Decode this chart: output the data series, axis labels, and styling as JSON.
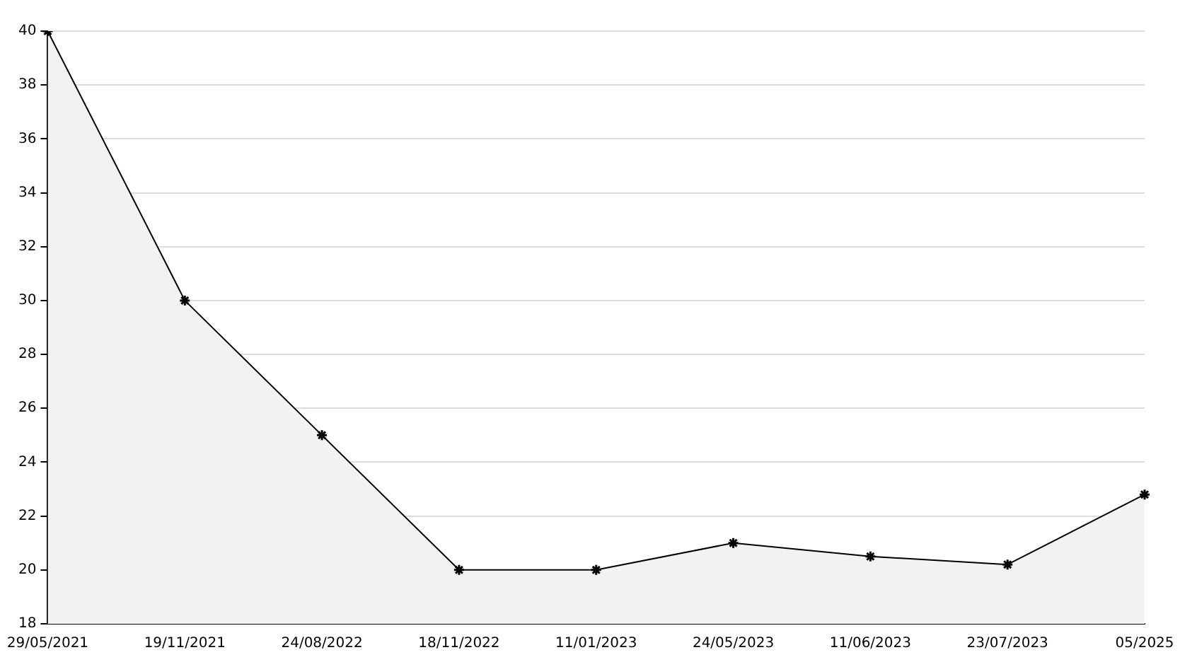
{
  "chart_data": {
    "type": "area",
    "categories": [
      "29/05/2021",
      "19/11/2021",
      "24/08/2022",
      "18/11/2022",
      "11/01/2023",
      "24/05/2023",
      "11/06/2023",
      "23/07/2023",
      "05/2025"
    ],
    "series": [
      {
        "color": "#000000",
        "values": [
          40,
          30,
          25,
          20,
          20,
          21,
          20.5,
          20.2,
          22.8
        ]
      }
    ],
    "ylim": [
      18,
      40
    ],
    "yticks": [
      18,
      20,
      22,
      24,
      26,
      28,
      30,
      32,
      34,
      36,
      38,
      40
    ],
    "grid": "y",
    "legend": false,
    "marker": "cross",
    "line_style": "solid"
  }
}
